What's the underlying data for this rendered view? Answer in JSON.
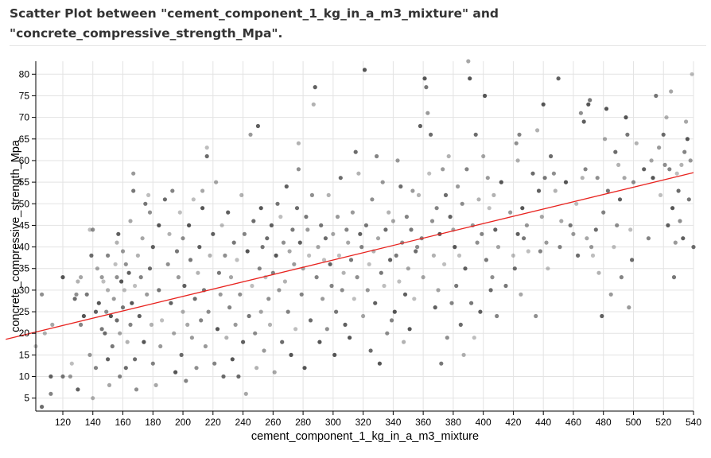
{
  "title": "Scatter Plot between \"cement_component_1_kg_in_a_m3_mixture\" and\n\"concrete_compressive_strength_Mpa\".",
  "chart_data": {
    "type": "scatter",
    "xlabel": "cement_component_1_kg_in_a_m3_mixture",
    "ylabel": "concrete_compressive_strength_Mpa",
    "xlim": [
      102,
      540
    ],
    "ylim": [
      2,
      83
    ],
    "x_ticks": [
      120,
      140,
      160,
      180,
      200,
      220,
      240,
      260,
      280,
      300,
      320,
      340,
      360,
      380,
      400,
      420,
      440,
      460,
      480,
      500,
      520,
      540
    ],
    "y_ticks": [
      5,
      10,
      15,
      20,
      25,
      30,
      35,
      40,
      45,
      50,
      55,
      60,
      65,
      70,
      75,
      80
    ],
    "grid": true,
    "regression_line": {
      "x": [
        102,
        540
      ],
      "y": [
        20.3,
        57.2
      ],
      "color": "#e8231f"
    },
    "point_color": "#444444",
    "points": [
      [
        102,
        17
      ],
      [
        106,
        3
      ],
      [
        106,
        29
      ],
      [
        108,
        20
      ],
      [
        112,
        10
      ],
      [
        112,
        6
      ],
      [
        113,
        22
      ],
      [
        120,
        33
      ],
      [
        120,
        10
      ],
      [
        125,
        10
      ],
      [
        126,
        13
      ],
      [
        128,
        28
      ],
      [
        129,
        29
      ],
      [
        130,
        32
      ],
      [
        130,
        7
      ],
      [
        132,
        22
      ],
      [
        132,
        33
      ],
      [
        134,
        24
      ],
      [
        136,
        29
      ],
      [
        138,
        15
      ],
      [
        138,
        44
      ],
      [
        139,
        38
      ],
      [
        140,
        44
      ],
      [
        140,
        5
      ],
      [
        142,
        25
      ],
      [
        142,
        12
      ],
      [
        143,
        35
      ],
      [
        144,
        27
      ],
      [
        146,
        21
      ],
      [
        146,
        33
      ],
      [
        147,
        32
      ],
      [
        148,
        20
      ],
      [
        149,
        25
      ],
      [
        150,
        30
      ],
      [
        150,
        14
      ],
      [
        150,
        38
      ],
      [
        151,
        8
      ],
      [
        152,
        24
      ],
      [
        153,
        17
      ],
      [
        154,
        28
      ],
      [
        155,
        36
      ],
      [
        156,
        23
      ],
      [
        156,
        33
      ],
      [
        156,
        41
      ],
      [
        157,
        43
      ],
      [
        158,
        10
      ],
      [
        158,
        20
      ],
      [
        159,
        32
      ],
      [
        160,
        26
      ],
      [
        160,
        39
      ],
      [
        161,
        30
      ],
      [
        162,
        12
      ],
      [
        162,
        36
      ],
      [
        163,
        18
      ],
      [
        164,
        34
      ],
      [
        165,
        22
      ],
      [
        165,
        46
      ],
      [
        166,
        27
      ],
      [
        167,
        53
      ],
      [
        167,
        57
      ],
      [
        168,
        31
      ],
      [
        168,
        14
      ],
      [
        169,
        7
      ],
      [
        170,
        38
      ],
      [
        171,
        24
      ],
      [
        172,
        33
      ],
      [
        173,
        42
      ],
      [
        174,
        18
      ],
      [
        175,
        50
      ],
      [
        176,
        29
      ],
      [
        177,
        52
      ],
      [
        178,
        35
      ],
      [
        178,
        48
      ],
      [
        179,
        22
      ],
      [
        180,
        40
      ],
      [
        180,
        13
      ],
      [
        182,
        8
      ],
      [
        184,
        45
      ],
      [
        184,
        30
      ],
      [
        185,
        17
      ],
      [
        186,
        23
      ],
      [
        188,
        51
      ],
      [
        190,
        36
      ],
      [
        191,
        43
      ],
      [
        192,
        27
      ],
      [
        193,
        53
      ],
      [
        194,
        20
      ],
      [
        195,
        11
      ],
      [
        196,
        39
      ],
      [
        197,
        33
      ],
      [
        198,
        48
      ],
      [
        199,
        15
      ],
      [
        200,
        42
      ],
      [
        200,
        25
      ],
      [
        201,
        31
      ],
      [
        202,
        9
      ],
      [
        203,
        22
      ],
      [
        204,
        45
      ],
      [
        205,
        37
      ],
      [
        206,
        19
      ],
      [
        207,
        51
      ],
      [
        208,
        28
      ],
      [
        209,
        12
      ],
      [
        210,
        34
      ],
      [
        211,
        40
      ],
      [
        212,
        23
      ],
      [
        213,
        53
      ],
      [
        213,
        49
      ],
      [
        214,
        30
      ],
      [
        215,
        17
      ],
      [
        216,
        63
      ],
      [
        216,
        61
      ],
      [
        217,
        25
      ],
      [
        218,
        38
      ],
      [
        220,
        43
      ],
      [
        221,
        13
      ],
      [
        222,
        55
      ],
      [
        223,
        21
      ],
      [
        224,
        34
      ],
      [
        225,
        29
      ],
      [
        226,
        45
      ],
      [
        227,
        10
      ],
      [
        228,
        38
      ],
      [
        229,
        19
      ],
      [
        230,
        48
      ],
      [
        231,
        26
      ],
      [
        232,
        33
      ],
      [
        233,
        14
      ],
      [
        234,
        41
      ],
      [
        235,
        22
      ],
      [
        236,
        37
      ],
      [
        237,
        10
      ],
      [
        238,
        29
      ],
      [
        239,
        52
      ],
      [
        240,
        18
      ],
      [
        241,
        43
      ],
      [
        242,
        6
      ],
      [
        243,
        39
      ],
      [
        244,
        24
      ],
      [
        245,
        66
      ],
      [
        246,
        31
      ],
      [
        247,
        46
      ],
      [
        248,
        20
      ],
      [
        249,
        12
      ],
      [
        250,
        68
      ],
      [
        251,
        35
      ],
      [
        252,
        25
      ],
      [
        252,
        49
      ],
      [
        253,
        40
      ],
      [
        254,
        16
      ],
      [
        255,
        33
      ],
      [
        256,
        42
      ],
      [
        257,
        28
      ],
      [
        258,
        22
      ],
      [
        259,
        45
      ],
      [
        260,
        34
      ],
      [
        261,
        11
      ],
      [
        262,
        38
      ],
      [
        263,
        50
      ],
      [
        264,
        30
      ],
      [
        265,
        47
      ],
      [
        266,
        18
      ],
      [
        267,
        41
      ],
      [
        268,
        32
      ],
      [
        269,
        54
      ],
      [
        270,
        25
      ],
      [
        271,
        39
      ],
      [
        272,
        15
      ],
      [
        273,
        44
      ],
      [
        274,
        36
      ],
      [
        275,
        21
      ],
      [
        276,
        49
      ],
      [
        277,
        58
      ],
      [
        277,
        64
      ],
      [
        278,
        41
      ],
      [
        279,
        29
      ],
      [
        280,
        35
      ],
      [
        281,
        12
      ],
      [
        282,
        47
      ],
      [
        283,
        44
      ],
      [
        284,
        38
      ],
      [
        285,
        23
      ],
      [
        286,
        52
      ],
      [
        287,
        73
      ],
      [
        288,
        77
      ],
      [
        289,
        33
      ],
      [
        290,
        40
      ],
      [
        291,
        18
      ],
      [
        292,
        45
      ],
      [
        293,
        28
      ],
      [
        294,
        37
      ],
      [
        295,
        42
      ],
      [
        296,
        21
      ],
      [
        297,
        52
      ],
      [
        298,
        36
      ],
      [
        299,
        31
      ],
      [
        300,
        43
      ],
      [
        301,
        15
      ],
      [
        302,
        25
      ],
      [
        303,
        47
      ],
      [
        304,
        38
      ],
      [
        305,
        56
      ],
      [
        306,
        30
      ],
      [
        307,
        34
      ],
      [
        308,
        22
      ],
      [
        309,
        44
      ],
      [
        310,
        41
      ],
      [
        311,
        19
      ],
      [
        312,
        37
      ],
      [
        313,
        48
      ],
      [
        314,
        28
      ],
      [
        315,
        62
      ],
      [
        316,
        33
      ],
      [
        317,
        57
      ],
      [
        318,
        43
      ],
      [
        319,
        40
      ],
      [
        320,
        24
      ],
      [
        321,
        81
      ],
      [
        322,
        45
      ],
      [
        323,
        30
      ],
      [
        324,
        36
      ],
      [
        325,
        16
      ],
      [
        326,
        51
      ],
      [
        327,
        39
      ],
      [
        328,
        27
      ],
      [
        329,
        61
      ],
      [
        330,
        42
      ],
      [
        331,
        13
      ],
      [
        332,
        34
      ],
      [
        333,
        55
      ],
      [
        334,
        31
      ],
      [
        335,
        44
      ],
      [
        336,
        20
      ],
      [
        337,
        48
      ],
      [
        338,
        37
      ],
      [
        339,
        23
      ],
      [
        340,
        46
      ],
      [
        341,
        25
      ],
      [
        342,
        38
      ],
      [
        343,
        60
      ],
      [
        344,
        32
      ],
      [
        345,
        54
      ],
      [
        346,
        41
      ],
      [
        347,
        18
      ],
      [
        348,
        29
      ],
      [
        349,
        47
      ],
      [
        350,
        35
      ],
      [
        351,
        21
      ],
      [
        352,
        44
      ],
      [
        353,
        53
      ],
      [
        354,
        28
      ],
      [
        355,
        39
      ],
      [
        356,
        40
      ],
      [
        357,
        52
      ],
      [
        358,
        68
      ],
      [
        359,
        42
      ],
      [
        360,
        33
      ],
      [
        361,
        79
      ],
      [
        362,
        77
      ],
      [
        363,
        71
      ],
      [
        364,
        57
      ],
      [
        365,
        66
      ],
      [
        366,
        46
      ],
      [
        367,
        38
      ],
      [
        368,
        26
      ],
      [
        369,
        49
      ],
      [
        370,
        30
      ],
      [
        371,
        43
      ],
      [
        372,
        13
      ],
      [
        373,
        58
      ],
      [
        374,
        36
      ],
      [
        375,
        52
      ],
      [
        376,
        19
      ],
      [
        377,
        61
      ],
      [
        378,
        47
      ],
      [
        379,
        27
      ],
      [
        380,
        44
      ],
      [
        381,
        40
      ],
      [
        382,
        31
      ],
      [
        383,
        54
      ],
      [
        384,
        38
      ],
      [
        385,
        22
      ],
      [
        386,
        50
      ],
      [
        387,
        15
      ],
      [
        388,
        35
      ],
      [
        389,
        58
      ],
      [
        390,
        83
      ],
      [
        391,
        79
      ],
      [
        392,
        27
      ],
      [
        393,
        45
      ],
      [
        394,
        19
      ],
      [
        395,
        66
      ],
      [
        396,
        41
      ],
      [
        397,
        51
      ],
      [
        398,
        25
      ],
      [
        399,
        43
      ],
      [
        400,
        61
      ],
      [
        401,
        75
      ],
      [
        402,
        37
      ],
      [
        403,
        56
      ],
      [
        404,
        49
      ],
      [
        405,
        30
      ],
      [
        406,
        33
      ],
      [
        407,
        52
      ],
      [
        408,
        44
      ],
      [
        409,
        24
      ],
      [
        410,
        40
      ],
      [
        412,
        55
      ],
      [
        415,
        31
      ],
      [
        418,
        48
      ],
      [
        420,
        38
      ],
      [
        421,
        35
      ],
      [
        422,
        64
      ],
      [
        423,
        60
      ],
      [
        423,
        43
      ],
      [
        424,
        66
      ],
      [
        425,
        29
      ],
      [
        426,
        49
      ],
      [
        427,
        42
      ],
      [
        429,
        45
      ],
      [
        430,
        39
      ],
      [
        433,
        57
      ],
      [
        435,
        24
      ],
      [
        436,
        67
      ],
      [
        437,
        53
      ],
      [
        438,
        39
      ],
      [
        439,
        47
      ],
      [
        440,
        73
      ],
      [
        441,
        56
      ],
      [
        442,
        41
      ],
      [
        443,
        35
      ],
      [
        445,
        61
      ],
      [
        447,
        57
      ],
      [
        448,
        53
      ],
      [
        450,
        79
      ],
      [
        451,
        40
      ],
      [
        452,
        46
      ],
      [
        455,
        55
      ],
      [
        458,
        45
      ],
      [
        460,
        43
      ],
      [
        462,
        50
      ],
      [
        463,
        38
      ],
      [
        465,
        71
      ],
      [
        466,
        56
      ],
      [
        467,
        69
      ],
      [
        468,
        58
      ],
      [
        469,
        42
      ],
      [
        470,
        73
      ],
      [
        471,
        74
      ],
      [
        472,
        40
      ],
      [
        473,
        38
      ],
      [
        475,
        44
      ],
      [
        476,
        56
      ],
      [
        477,
        34
      ],
      [
        479,
        24
      ],
      [
        480,
        48
      ],
      [
        481,
        65
      ],
      [
        482,
        72
      ],
      [
        483,
        53
      ],
      [
        485,
        29
      ],
      [
        487,
        40
      ],
      [
        488,
        62
      ],
      [
        489,
        45
      ],
      [
        490,
        59
      ],
      [
        491,
        51
      ],
      [
        492,
        33
      ],
      [
        494,
        56
      ],
      [
        495,
        70
      ],
      [
        496,
        66
      ],
      [
        497,
        26
      ],
      [
        498,
        44
      ],
      [
        499,
        37
      ],
      [
        500,
        55
      ],
      [
        502,
        64
      ],
      [
        507,
        58
      ],
      [
        510,
        42
      ],
      [
        512,
        60
      ],
      [
        513,
        56
      ],
      [
        515,
        75
      ],
      [
        517,
        63
      ],
      [
        518,
        52
      ],
      [
        520,
        66
      ],
      [
        521,
        59
      ],
      [
        522,
        70
      ],
      [
        523,
        45
      ],
      [
        524,
        58
      ],
      [
        525,
        76
      ],
      [
        526,
        49
      ],
      [
        527,
        33
      ],
      [
        528,
        41
      ],
      [
        529,
        57
      ],
      [
        530,
        53
      ],
      [
        531,
        46
      ],
      [
        532,
        59
      ],
      [
        533,
        42
      ],
      [
        534,
        62
      ],
      [
        535,
        69
      ],
      [
        536,
        65
      ],
      [
        537,
        51
      ],
      [
        538,
        60
      ],
      [
        539,
        80
      ],
      [
        540,
        40
      ]
    ]
  }
}
